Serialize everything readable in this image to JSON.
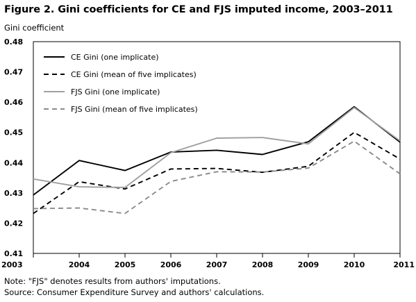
{
  "title": "Figure 2. Gini coefficients for CE and FJS imputed income, 2003–2011",
  "ylabel": "Gini coefficient",
  "notes": {
    "note": "Note: \"FJS\" denotes results from authors' imputations.",
    "source": "Source: Consumer Expenditure Survey and authors' calculations."
  },
  "chart_data": {
    "type": "line",
    "x": [
      "2003",
      "2004",
      "2005",
      "2006",
      "2007",
      "2008",
      "2009",
      "2010",
      "2011"
    ],
    "ylim": [
      0.41,
      0.48
    ],
    "yticks": [
      "0.41",
      "0.42",
      "0.43",
      "0.44",
      "0.45",
      "0.46",
      "0.47",
      "0.48"
    ],
    "grid": false,
    "legend_position": "top-left",
    "series": [
      {
        "name": "CE Gini (one implicate)",
        "color": "#000000",
        "dash": "solid",
        "values": [
          0.4293,
          0.4407,
          0.4374,
          0.4435,
          0.4441,
          0.4427,
          0.4469,
          0.4585,
          0.4468
        ]
      },
      {
        "name": "CE Gini (mean of five implicates)",
        "color": "#000000",
        "dash": "dashed",
        "values": [
          0.4232,
          0.4337,
          0.4313,
          0.4379,
          0.4381,
          0.4368,
          0.4388,
          0.45,
          0.4412
        ]
      },
      {
        "name": "FJS Gini (one implicate)",
        "color": "#a0a0a0",
        "dash": "solid",
        "values": [
          0.4346,
          0.432,
          0.4318,
          0.4433,
          0.4481,
          0.4483,
          0.4462,
          0.4582,
          0.4472
        ]
      },
      {
        "name": "FJS Gini (mean of five implicates)",
        "color": "#8a8a8a",
        "dash": "dashed",
        "values": [
          0.4248,
          0.425,
          0.4232,
          0.4338,
          0.437,
          0.4369,
          0.4382,
          0.4471,
          0.4363
        ]
      }
    ]
  }
}
